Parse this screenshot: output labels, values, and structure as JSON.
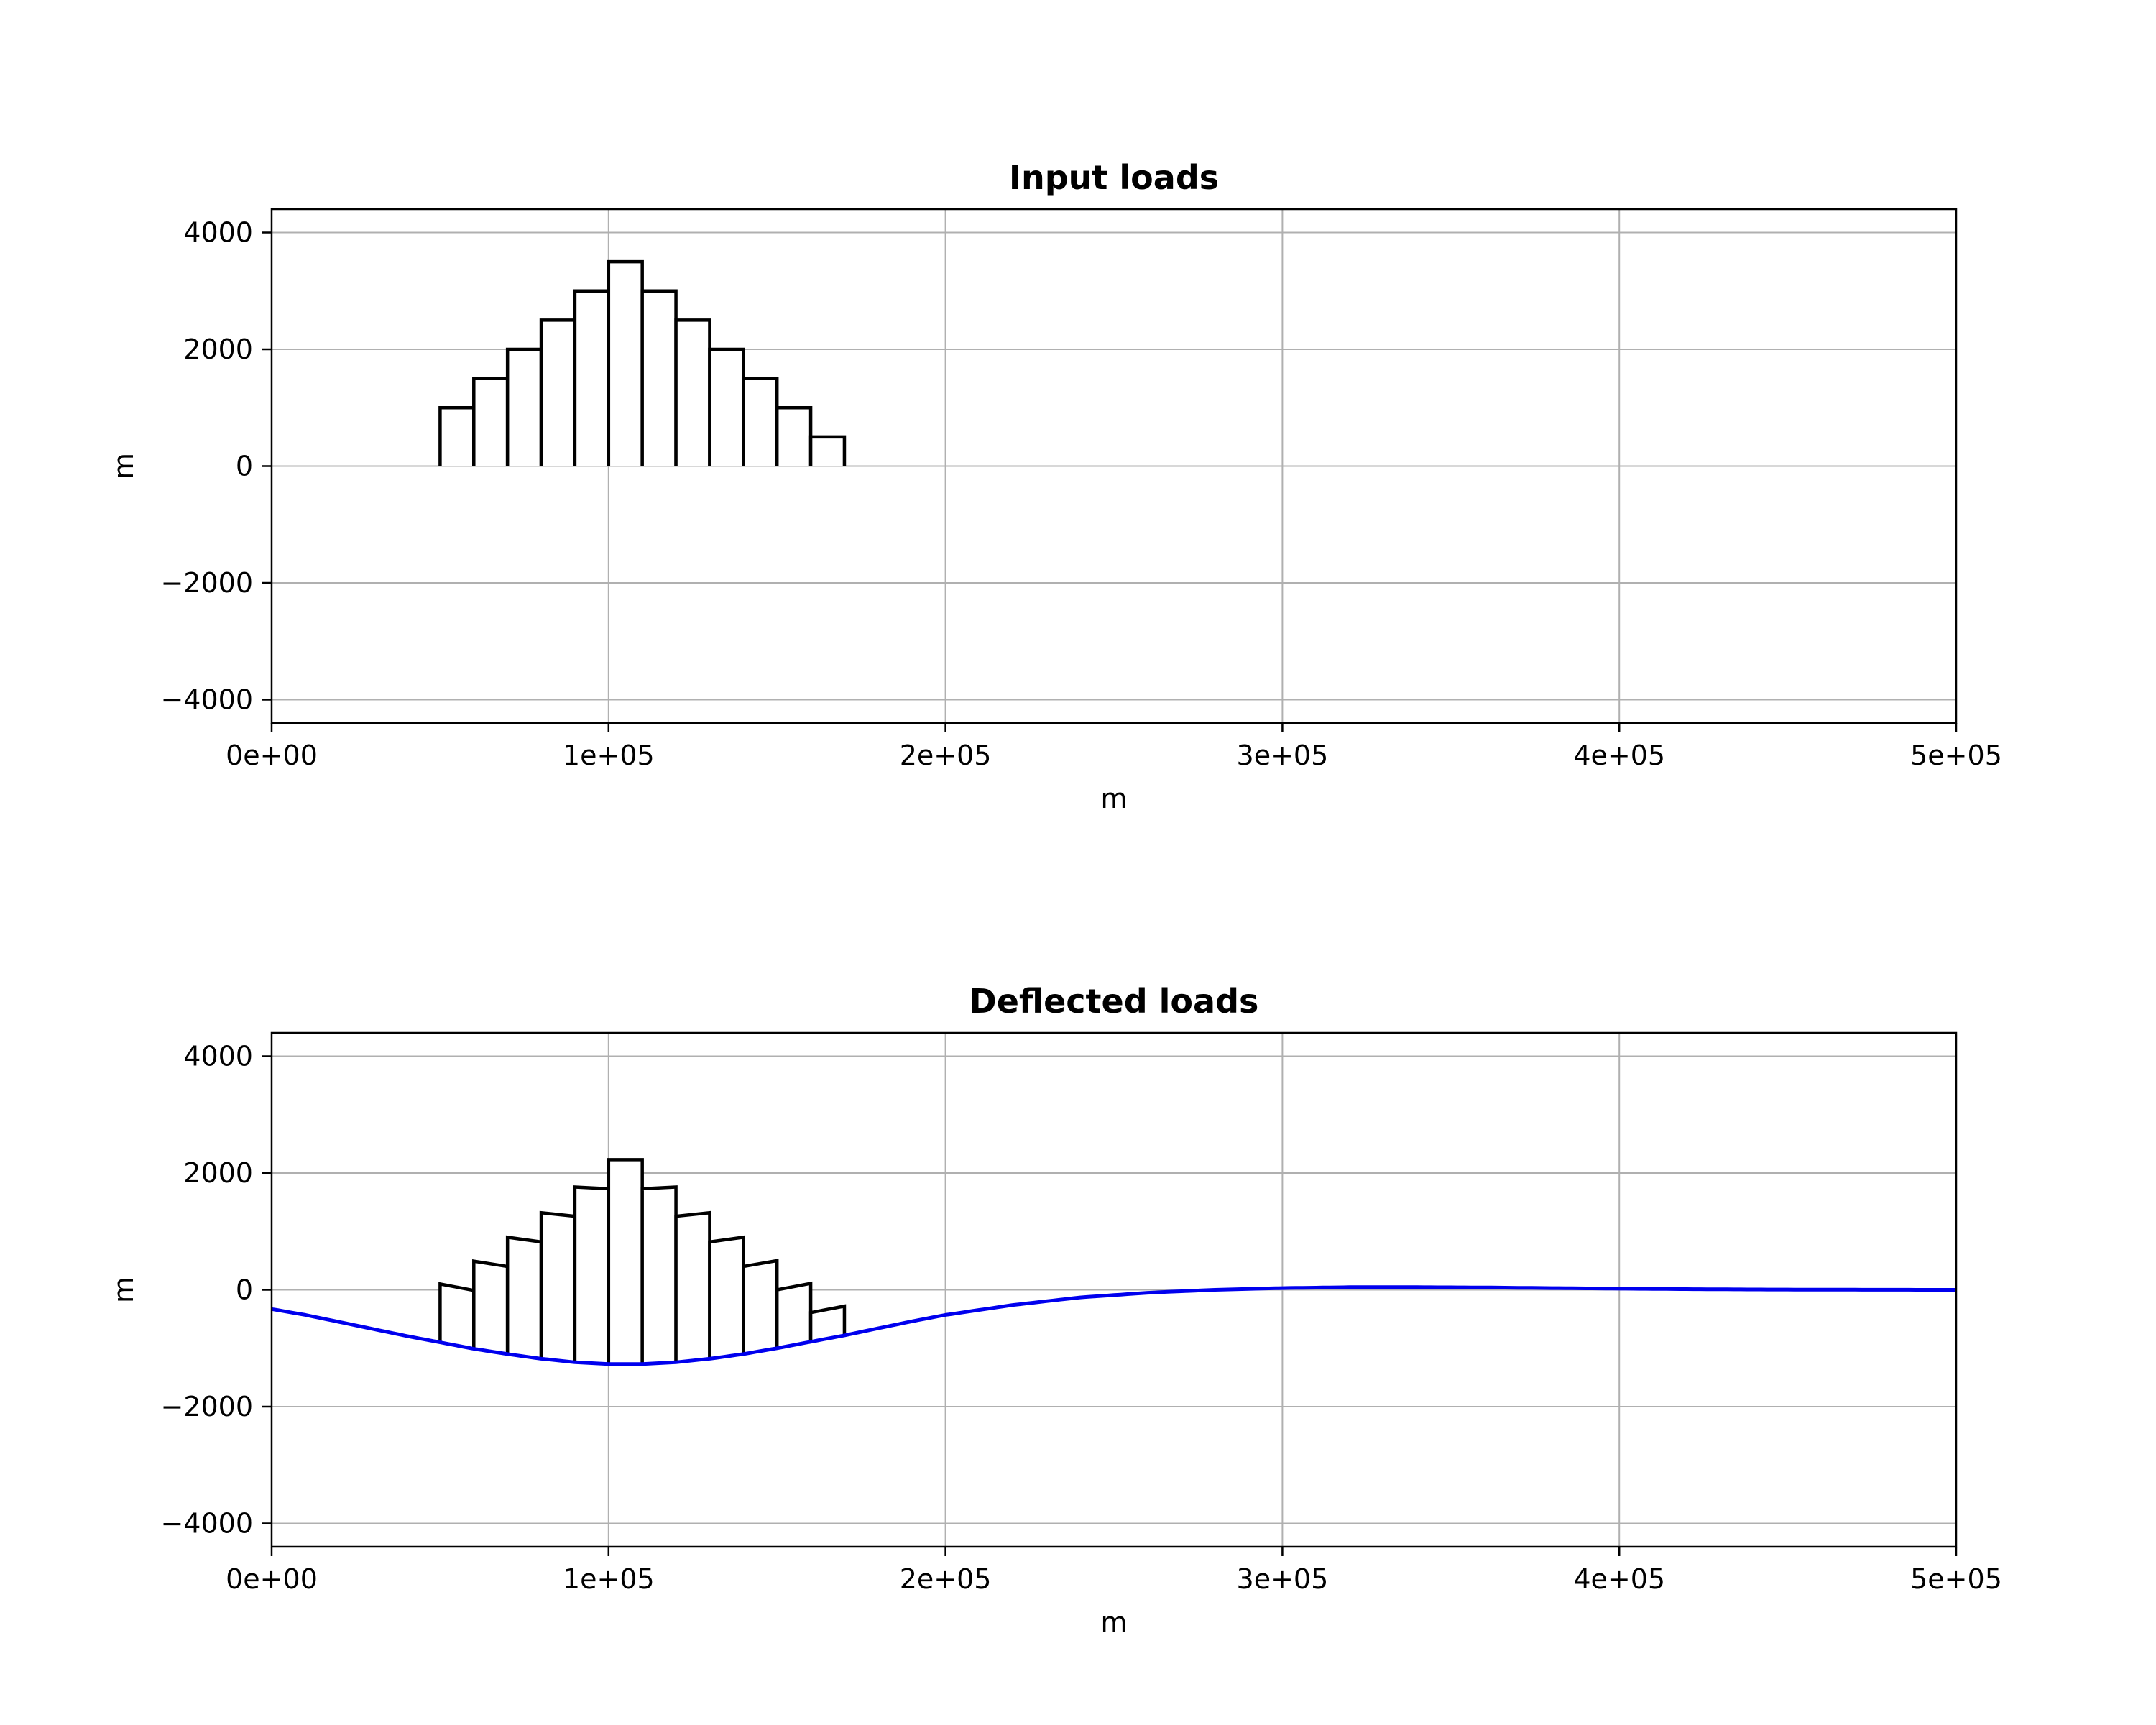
{
  "chart_data": [
    {
      "type": "bar",
      "title": "Input loads",
      "xlabel": "m",
      "ylabel": "m",
      "xlim": [
        0,
        500000
      ],
      "ylim": [
        -4400,
        4400
      ],
      "xticks": [
        0,
        100000,
        200000,
        300000,
        400000,
        500000
      ],
      "xtick_labels": [
        "0e+00",
        "1e+05",
        "2e+05",
        "3e+05",
        "4e+05",
        "5e+05"
      ],
      "yticks": [
        -4000,
        -2000,
        0,
        2000,
        4000
      ],
      "ytick_labels": [
        "−4000",
        "−2000",
        "0",
        "2000",
        "4000"
      ],
      "grid": true,
      "bar_edges": [
        50000,
        60000,
        70000,
        80000,
        90000,
        100000,
        110000,
        120000,
        130000,
        140000,
        150000,
        160000,
        170000
      ],
      "bar_heights": [
        1000,
        1500,
        2000,
        2500,
        3000,
        3500,
        3000,
        2500,
        2000,
        1500,
        1000,
        500
      ],
      "bar_color": "#000000",
      "bar_fill": "#ffffff"
    },
    {
      "type": "bar",
      "title": "Deflected loads",
      "xlabel": "m",
      "ylabel": "m",
      "xlim": [
        0,
        500000
      ],
      "ylim": [
        -4400,
        4400
      ],
      "xticks": [
        0,
        100000,
        200000,
        300000,
        400000,
        500000
      ],
      "xtick_labels": [
        "0e+00",
        "1e+05",
        "2e+05",
        "3e+05",
        "4e+05",
        "5e+05"
      ],
      "yticks": [
        -4000,
        -2000,
        0,
        2000,
        4000
      ],
      "ytick_labels": [
        "−4000",
        "−2000",
        "0",
        "2000",
        "4000"
      ],
      "grid": true,
      "bar_edges": [
        50000,
        60000,
        70000,
        80000,
        90000,
        100000,
        110000,
        120000,
        130000,
        140000,
        150000,
        160000,
        170000
      ],
      "bar_heights": [
        1000,
        1500,
        2000,
        2500,
        3000,
        3500,
        3000,
        2500,
        2000,
        1500,
        1000,
        500
      ],
      "bar_color": "#000000",
      "bar_fill": "#ffffff",
      "deflection": {
        "color": "#0000ee",
        "x": [
          0,
          10000,
          20000,
          30000,
          40000,
          50000,
          60000,
          70000,
          80000,
          90000,
          100000,
          110000,
          120000,
          130000,
          140000,
          150000,
          160000,
          170000,
          180000,
          190000,
          200000,
          220000,
          240000,
          260000,
          280000,
          300000,
          320000,
          340000,
          360000,
          380000,
          400000,
          420000,
          440000,
          460000,
          480000,
          500000
        ],
        "y": [
          -330,
          -430,
          -550,
          -670,
          -790,
          -900,
          -1010,
          -1100,
          -1180,
          -1240,
          -1270,
          -1270,
          -1240,
          -1180,
          -1100,
          -1000,
          -890,
          -780,
          -660,
          -540,
          -430,
          -260,
          -130,
          -50,
          0,
          30,
          45,
          45,
          40,
          30,
          20,
          12,
          6,
          3,
          1,
          0
        ]
      }
    }
  ]
}
